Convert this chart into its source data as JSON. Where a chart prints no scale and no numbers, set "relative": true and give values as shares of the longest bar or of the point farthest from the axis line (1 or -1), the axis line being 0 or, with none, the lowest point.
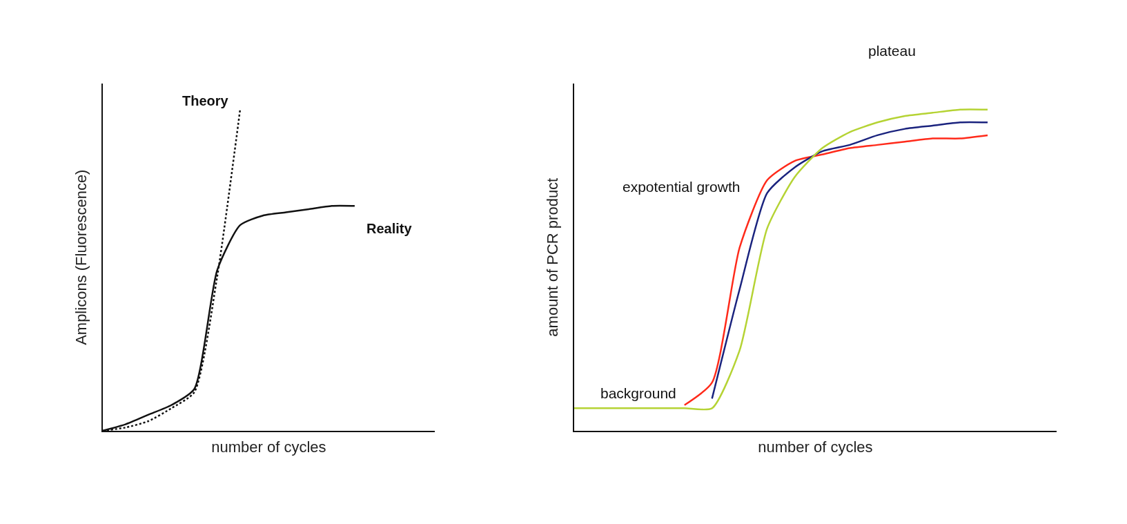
{
  "chart_data": [
    {
      "type": "line",
      "relative": true,
      "xlabel": "number of cycles",
      "ylabel": "Amplicons (Fluorescence)",
      "categories": [
        null,
        null,
        null,
        null,
        null,
        null,
        null,
        null,
        null,
        null,
        null,
        null,
        null,
        null
      ],
      "series": [
        {
          "name": "Theory",
          "color": "#111111",
          "line_style": "dotted",
          "values": [
            0,
            0.01,
            0.03,
            0.07,
            0.12,
            0.48,
            1.0,
            null,
            null,
            null,
            null,
            null,
            null,
            null
          ]
        },
        {
          "name": "Reality",
          "color": "#111111",
          "line_style": "solid",
          "values": [
            0,
            0.02,
            0.05,
            0.08,
            0.13,
            0.5,
            0.64,
            0.67,
            0.68,
            0.69,
            0.7,
            0.7,
            null,
            null
          ]
        }
      ],
      "marker": "none"
    },
    {
      "type": "line",
      "relative": true,
      "xlabel": "number of cycles",
      "ylabel": "amount of PCR product",
      "categories": [
        null,
        null,
        null,
        null,
        null,
        null,
        null,
        null,
        null,
        null,
        null,
        null,
        null,
        null,
        null,
        null,
        null
      ],
      "series": [
        {
          "color": "#ff2a1a",
          "values": [
            null,
            null,
            null,
            null,
            0.08,
            0.15,
            0.57,
            0.78,
            0.84,
            0.86,
            0.88,
            0.89,
            0.9,
            0.91,
            0.91,
            0.92,
            null
          ]
        },
        {
          "color": "#1a237e",
          "values": [
            null,
            null,
            null,
            null,
            null,
            0.1,
            0.44,
            0.74,
            0.82,
            0.87,
            0.89,
            0.92,
            0.94,
            0.95,
            0.96,
            0.96,
            null
          ]
        },
        {
          "color": "#b5d334",
          "values": [
            0.07,
            0.07,
            0.07,
            0.07,
            0.07,
            0.07,
            0.25,
            0.63,
            0.79,
            0.88,
            0.93,
            0.96,
            0.98,
            0.99,
            1.0,
            1.0,
            null
          ]
        }
      ],
      "annotations": [
        "plateau",
        "expotential growth",
        "background"
      ],
      "marker": "none"
    }
  ]
}
